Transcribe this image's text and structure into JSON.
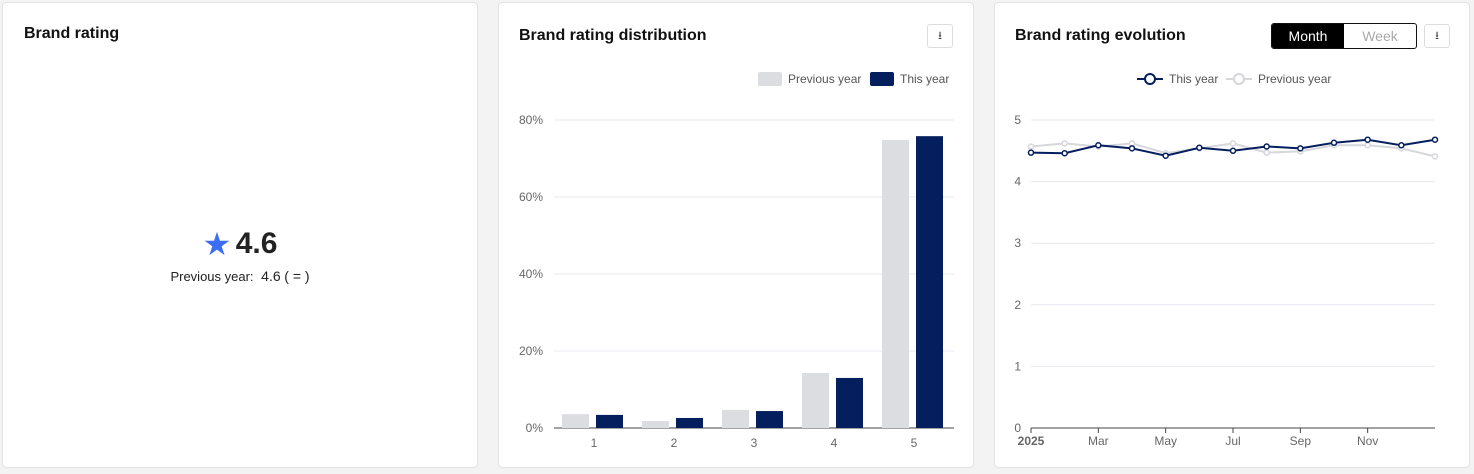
{
  "rating_card": {
    "title": "Brand rating",
    "value": "4.6",
    "prev_label": "Previous year:",
    "prev_value": "4.6",
    "change": "( = )",
    "star_color": "#3b6ef5"
  },
  "distribution": {
    "title": "Brand rating distribution",
    "legend": [
      "Previous year",
      "This year"
    ],
    "chart_data": {
      "type": "bar",
      "categories": [
        "1",
        "2",
        "3",
        "4",
        "5"
      ],
      "series": [
        {
          "name": "Previous year",
          "color": "#dcdde1",
          "values": [
            3.6,
            1.8,
            4.7,
            14.3,
            74.8
          ]
        },
        {
          "name": "This year",
          "color": "#041e5e",
          "values": [
            3.4,
            2.6,
            4.4,
            13.0,
            75.8
          ]
        }
      ],
      "yticks": [
        "0%",
        "20%",
        "40%",
        "60%",
        "80%"
      ],
      "ylim": [
        0,
        80
      ]
    }
  },
  "evolution": {
    "title": "Brand rating evolution",
    "toggle": [
      "Month",
      "Week"
    ],
    "active": "Month",
    "legend": [
      "This year",
      "Previous year"
    ],
    "chart_data": {
      "type": "line",
      "xticks": [
        "2025",
        "Mar",
        "May",
        "Jul",
        "Sep",
        "Nov"
      ],
      "yticks": [
        "0",
        "1",
        "2",
        "3",
        "4",
        "5"
      ],
      "ylim": [
        0,
        5
      ],
      "series": [
        {
          "name": "This year",
          "color": "#041e5e",
          "values": [
            4.47,
            4.46,
            4.59,
            4.54,
            4.42,
            4.55,
            4.5,
            4.57,
            4.54,
            4.63,
            4.68,
            4.59,
            4.68
          ]
        },
        {
          "name": "Previous year",
          "color": "#d6d7db",
          "values": [
            4.57,
            4.62,
            4.57,
            4.62,
            4.46,
            4.54,
            4.62,
            4.47,
            4.49,
            4.59,
            4.59,
            4.54,
            4.41
          ]
        }
      ]
    }
  }
}
